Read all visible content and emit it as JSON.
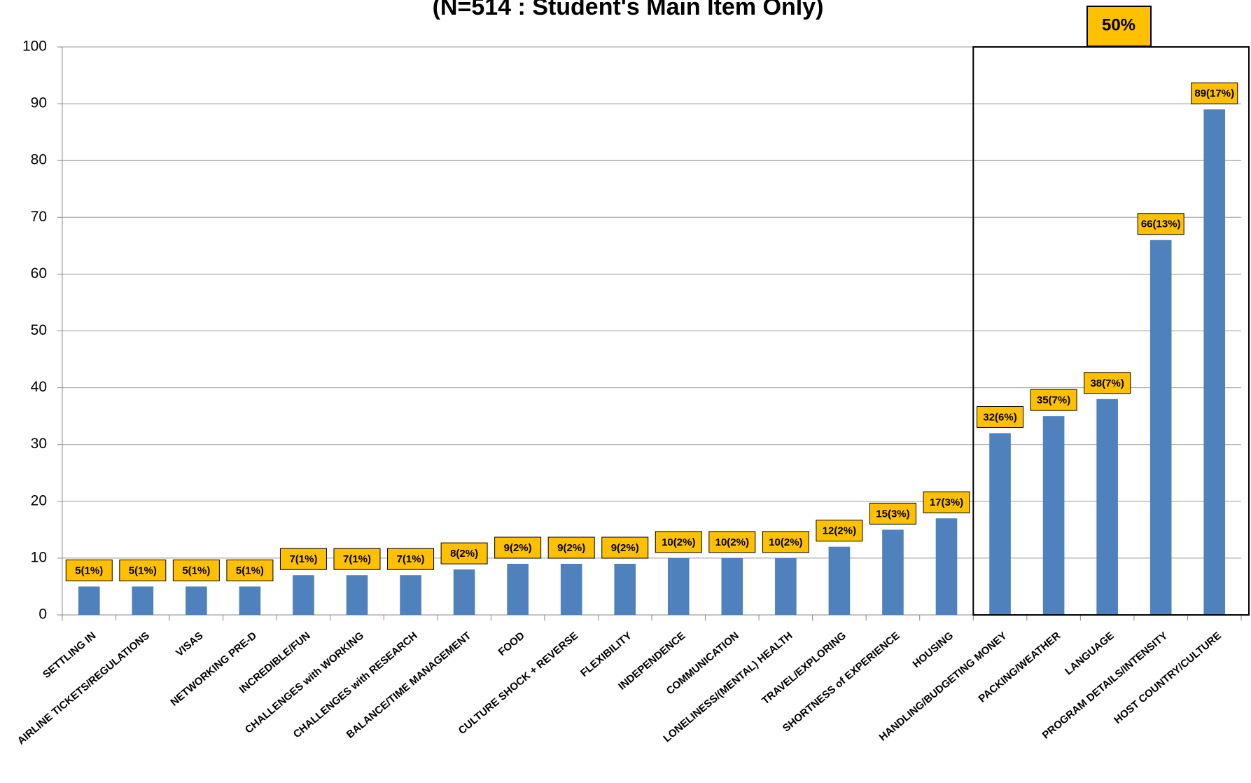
{
  "chart_data": {
    "type": "bar",
    "title": "(N=514 : Student's Main Item Only)",
    "annotation": "50%",
    "categories": [
      "SETTLING IN",
      "AIRLINE TICKETS/REGULATIONS",
      "VISAS",
      "NETWORKING PRE-D",
      "INCREDIBLE/FUN",
      "CHALLENGES with WORKING",
      "CHALLENGES with RESEARCH",
      "BALANCE/TIME  MANAGEMENT",
      "FOOD",
      "CULTURE SHOCK + REVERSE",
      "FLEXIBILITY",
      "INDEPENDENCE",
      "COMMUNICATION",
      "LONELINESS/(MENTAL)  HEALTH",
      "TRAVEL/EXPLORING",
      "SHORTNESS of EXPERIENCE",
      "HOUSING",
      "HANDLING/BUDGETING MONEY",
      "PACKING/WEATHER",
      "LANGUAGE",
      "PROGRAM DETAILS/INTENSITY",
      "HOST COUNTRY/CULTURE"
    ],
    "values": [
      5,
      5,
      5,
      5,
      7,
      7,
      7,
      8,
      9,
      9,
      9,
      10,
      10,
      10,
      12,
      15,
      17,
      32,
      35,
      38,
      66,
      89
    ],
    "value_labels": [
      "5(1%)",
      "5(1%)",
      "5(1%)",
      "5(1%)",
      "7(1%)",
      "7(1%)",
      "7(1%)",
      "8(2%)",
      "9(2%)",
      "9(2%)",
      "9(2%)",
      "10(2%)",
      "10(2%)",
      "10(2%)",
      "12(2%)",
      "15(3%)",
      "17(3%)",
      "32(6%)",
      "35(7%)",
      "38(7%)",
      "66(13%)",
      "89(17%)"
    ],
    "color": "#4f81bd",
    "label_color": "#ffc000",
    "ylim": [
      0,
      100
    ],
    "yticks": [
      0,
      10,
      20,
      30,
      40,
      50,
      60,
      70,
      80,
      90,
      100
    ],
    "grid": true
  }
}
